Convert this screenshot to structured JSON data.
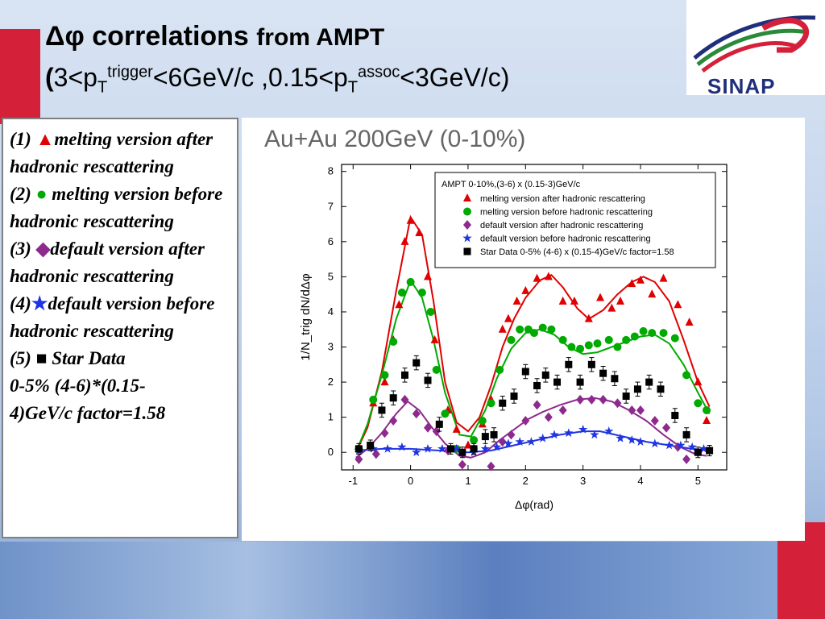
{
  "slide": {
    "title_symbol": "Δφ",
    "title_main": "correlations",
    "title_rest": "from AMPT",
    "subtitle_parts": [
      "(",
      "3<p",
      "T",
      "trigger",
      "<6GeV/c ,0.15<p",
      "T",
      "assoc",
      "<3GeV/c)"
    ],
    "logo_text": "SINAP",
    "colors": {
      "red_accent": "#d5203a",
      "logo_blue": "#1f2f7a",
      "logo_green": "#2a8a3a",
      "logo_red": "#d5203a"
    }
  },
  "legend_panel": {
    "items": [
      {
        "num": "(1)",
        "marker": "triangle",
        "color": "#e00000",
        "text": "melting version after hadronic rescattering"
      },
      {
        "num": "(2)",
        "marker": "circle",
        "color": "#00aa00",
        "text": "melting version before hadronic rescattering"
      },
      {
        "num": "(3)",
        "marker": "diamond",
        "color": "#8e2a8e",
        "text": "default version after hadronic rescattering"
      },
      {
        "num": "(4)",
        "marker": "star",
        "color": "#2035e0",
        "text": "default version before hadronic rescattering"
      },
      {
        "num": "(5)",
        "marker": "square",
        "color": "#000000",
        "text": "Star Data"
      }
    ],
    "extra_lines": [
      "0-5% (4-6)*(0.15-",
      "4)GeV/c factor=1.58"
    ]
  },
  "chart_data": {
    "type": "scatter",
    "title": "Au+Au 200GeV (0-10%)",
    "xlabel": "Δφ(rad)",
    "ylabel": "1/N_trig dN/dΔφ",
    "xlim": [
      -1.2,
      5.5
    ],
    "ylim": [
      -0.5,
      8.2
    ],
    "x_ticks": [
      -1,
      0,
      1,
      2,
      3,
      4,
      5
    ],
    "y_ticks": [
      0,
      1,
      2,
      3,
      4,
      5,
      6,
      7,
      8
    ],
    "legend_title": "AMPT 0-10%,(3-6) x (0.15-3)GeV/c",
    "legend_position": "top-right",
    "series": [
      {
        "name": "melting version after hadronic rescattering",
        "marker": "triangle",
        "color": "#e00000",
        "points": [
          [
            -0.9,
            0.1
          ],
          [
            -0.65,
            1.4
          ],
          [
            -0.45,
            2.0
          ],
          [
            -0.3,
            3.2
          ],
          [
            -0.2,
            4.2
          ],
          [
            -0.1,
            6.0
          ],
          [
            0.0,
            6.6
          ],
          [
            0.15,
            6.25
          ],
          [
            0.3,
            5.0
          ],
          [
            0.42,
            3.2
          ],
          [
            0.65,
            1.2
          ],
          [
            0.8,
            0.65
          ],
          [
            1.0,
            0.2
          ],
          [
            1.25,
            0.8
          ],
          [
            1.4,
            1.5
          ],
          [
            1.6,
            3.5
          ],
          [
            1.7,
            3.8
          ],
          [
            1.85,
            4.3
          ],
          [
            2.0,
            4.6
          ],
          [
            2.2,
            4.95
          ],
          [
            2.4,
            5.0
          ],
          [
            2.65,
            4.3
          ],
          [
            2.85,
            4.3
          ],
          [
            3.1,
            3.8
          ],
          [
            3.3,
            4.4
          ],
          [
            3.5,
            4.1
          ],
          [
            3.65,
            4.3
          ],
          [
            3.85,
            4.8
          ],
          [
            4.0,
            4.9
          ],
          [
            4.2,
            4.5
          ],
          [
            4.4,
            4.95
          ],
          [
            4.65,
            4.2
          ],
          [
            4.85,
            3.7
          ],
          [
            5.0,
            2.0
          ],
          [
            5.15,
            0.9
          ]
        ]
      },
      {
        "name": "melting version before hadronic rescattering",
        "marker": "circle",
        "color": "#00aa00",
        "points": [
          [
            -0.9,
            0.1
          ],
          [
            -0.65,
            1.5
          ],
          [
            -0.45,
            2.2
          ],
          [
            -0.3,
            3.15
          ],
          [
            -0.15,
            4.55
          ],
          [
            0.0,
            4.85
          ],
          [
            0.2,
            4.55
          ],
          [
            0.35,
            4.0
          ],
          [
            0.45,
            2.35
          ],
          [
            0.6,
            1.1
          ],
          [
            0.8,
            0.1
          ],
          [
            1.1,
            0.35
          ],
          [
            1.25,
            0.9
          ],
          [
            1.4,
            1.4
          ],
          [
            1.55,
            2.35
          ],
          [
            1.75,
            3.2
          ],
          [
            1.9,
            3.5
          ],
          [
            2.05,
            3.5
          ],
          [
            2.15,
            3.4
          ],
          [
            2.3,
            3.55
          ],
          [
            2.45,
            3.5
          ],
          [
            2.65,
            3.2
          ],
          [
            2.8,
            3.0
          ],
          [
            2.95,
            2.95
          ],
          [
            3.1,
            3.05
          ],
          [
            3.25,
            3.1
          ],
          [
            3.45,
            3.2
          ],
          [
            3.6,
            3.0
          ],
          [
            3.75,
            3.2
          ],
          [
            3.9,
            3.3
          ],
          [
            4.05,
            3.45
          ],
          [
            4.2,
            3.4
          ],
          [
            4.4,
            3.4
          ],
          [
            4.6,
            3.25
          ],
          [
            4.8,
            2.2
          ],
          [
            5.0,
            1.4
          ],
          [
            5.15,
            1.2
          ]
        ]
      },
      {
        "name": "default version after hadronic rescattering",
        "marker": "diamond",
        "color": "#8e2a8e",
        "points": [
          [
            -0.9,
            -0.2
          ],
          [
            -0.6,
            -0.05
          ],
          [
            -0.45,
            0.55
          ],
          [
            -0.3,
            0.9
          ],
          [
            -0.1,
            1.5
          ],
          [
            0.1,
            1.1
          ],
          [
            0.3,
            0.7
          ],
          [
            0.45,
            0.6
          ],
          [
            0.65,
            0.05
          ],
          [
            0.9,
            -0.35
          ],
          [
            1.1,
            0.1
          ],
          [
            1.4,
            -0.4
          ],
          [
            1.6,
            0.3
          ],
          [
            1.75,
            0.5
          ],
          [
            2.0,
            0.9
          ],
          [
            2.2,
            1.35
          ],
          [
            2.4,
            1.0
          ],
          [
            2.65,
            1.2
          ],
          [
            2.95,
            1.5
          ],
          [
            3.15,
            1.5
          ],
          [
            3.35,
            1.5
          ],
          [
            3.6,
            1.4
          ],
          [
            3.85,
            1.2
          ],
          [
            4.0,
            1.2
          ],
          [
            4.25,
            0.9
          ],
          [
            4.45,
            0.7
          ],
          [
            4.65,
            0.15
          ],
          [
            4.8,
            -0.2
          ],
          [
            5.0,
            0.0
          ]
        ]
      },
      {
        "name": "default version before hadronic rescattering",
        "marker": "star",
        "color": "#2035e0",
        "points": [
          [
            -0.9,
            0.05
          ],
          [
            -0.65,
            0.1
          ],
          [
            -0.4,
            0.1
          ],
          [
            -0.15,
            0.15
          ],
          [
            0.1,
            0.0
          ],
          [
            0.3,
            0.1
          ],
          [
            0.55,
            0.1
          ],
          [
            0.8,
            0.1
          ],
          [
            1.1,
            0.0
          ],
          [
            1.3,
            0.1
          ],
          [
            1.5,
            0.15
          ],
          [
            1.7,
            0.25
          ],
          [
            1.9,
            0.3
          ],
          [
            2.1,
            0.3
          ],
          [
            2.3,
            0.4
          ],
          [
            2.5,
            0.5
          ],
          [
            2.75,
            0.55
          ],
          [
            3.0,
            0.65
          ],
          [
            3.2,
            0.5
          ],
          [
            3.45,
            0.6
          ],
          [
            3.65,
            0.4
          ],
          [
            3.85,
            0.35
          ],
          [
            4.0,
            0.3
          ],
          [
            4.25,
            0.25
          ],
          [
            4.5,
            0.2
          ],
          [
            4.7,
            0.2
          ],
          [
            4.9,
            0.15
          ],
          [
            5.1,
            0.1
          ]
        ]
      },
      {
        "name": "Star Data 0-5% (4-6) x (0.15-4)GeV/c factor=1.58",
        "marker": "square",
        "color": "#000000",
        "points": [
          [
            -0.9,
            0.1
          ],
          [
            -0.7,
            0.2
          ],
          [
            -0.5,
            1.2
          ],
          [
            -0.3,
            1.55
          ],
          [
            -0.1,
            2.2
          ],
          [
            0.1,
            2.55
          ],
          [
            0.3,
            2.05
          ],
          [
            0.5,
            0.8
          ],
          [
            0.7,
            0.1
          ],
          [
            0.9,
            0.0
          ],
          [
            1.1,
            0.1
          ],
          [
            1.3,
            0.45
          ],
          [
            1.45,
            0.5
          ],
          [
            1.6,
            1.4
          ],
          [
            1.8,
            1.6
          ],
          [
            2.0,
            2.3
          ],
          [
            2.2,
            1.9
          ],
          [
            2.35,
            2.2
          ],
          [
            2.55,
            2.0
          ],
          [
            2.75,
            2.5
          ],
          [
            2.95,
            2.0
          ],
          [
            3.15,
            2.5
          ],
          [
            3.35,
            2.25
          ],
          [
            3.55,
            2.1
          ],
          [
            3.75,
            1.6
          ],
          [
            3.95,
            1.8
          ],
          [
            4.15,
            2.0
          ],
          [
            4.35,
            1.8
          ],
          [
            4.6,
            1.05
          ],
          [
            4.8,
            0.5
          ],
          [
            5.0,
            0.0
          ],
          [
            5.2,
            0.05
          ]
        ],
        "errors": [
          0.15,
          0.15,
          0.2,
          0.2,
          0.2,
          0.2,
          0.2,
          0.2,
          0.15,
          0.15,
          0.15,
          0.2,
          0.2,
          0.2,
          0.2,
          0.2,
          0.2,
          0.2,
          0.2,
          0.2,
          0.2,
          0.2,
          0.2,
          0.2,
          0.2,
          0.2,
          0.2,
          0.2,
          0.2,
          0.2,
          0.15,
          0.15
        ]
      }
    ],
    "fit_curves": [
      {
        "color": "#e00000",
        "points": [
          [
            -0.95,
            0.0
          ],
          [
            -0.75,
            0.7
          ],
          [
            -0.5,
            2.3
          ],
          [
            -0.25,
            4.6
          ],
          [
            0.0,
            6.7
          ],
          [
            0.2,
            6.2
          ],
          [
            0.4,
            4.3
          ],
          [
            0.6,
            2.0
          ],
          [
            0.8,
            0.85
          ],
          [
            1.0,
            0.6
          ],
          [
            1.2,
            1.0
          ],
          [
            1.4,
            1.9
          ],
          [
            1.6,
            3.0
          ],
          [
            1.8,
            3.8
          ],
          [
            2.0,
            4.4
          ],
          [
            2.25,
            4.9
          ],
          [
            2.45,
            5.05
          ],
          [
            2.65,
            4.7
          ],
          [
            2.9,
            4.1
          ],
          [
            3.1,
            3.8
          ],
          [
            3.35,
            4.05
          ],
          [
            3.6,
            4.5
          ],
          [
            3.85,
            4.85
          ],
          [
            4.05,
            5.0
          ],
          [
            4.25,
            4.85
          ],
          [
            4.5,
            4.3
          ],
          [
            4.75,
            3.2
          ],
          [
            5.0,
            2.0
          ],
          [
            5.2,
            1.3
          ]
        ]
      },
      {
        "color": "#00aa00",
        "points": [
          [
            -0.95,
            0.0
          ],
          [
            -0.75,
            0.8
          ],
          [
            -0.5,
            2.2
          ],
          [
            -0.25,
            3.8
          ],
          [
            0.0,
            4.9
          ],
          [
            0.2,
            4.4
          ],
          [
            0.4,
            3.2
          ],
          [
            0.6,
            1.7
          ],
          [
            0.85,
            0.5
          ],
          [
            1.05,
            0.45
          ],
          [
            1.3,
            1.2
          ],
          [
            1.5,
            2.1
          ],
          [
            1.75,
            2.95
          ],
          [
            2.0,
            3.4
          ],
          [
            2.25,
            3.5
          ],
          [
            2.5,
            3.35
          ],
          [
            2.75,
            3.0
          ],
          [
            3.0,
            2.8
          ],
          [
            3.25,
            2.85
          ],
          [
            3.5,
            3.0
          ],
          [
            3.75,
            3.15
          ],
          [
            4.0,
            3.3
          ],
          [
            4.25,
            3.35
          ],
          [
            4.5,
            3.1
          ],
          [
            4.75,
            2.5
          ],
          [
            5.0,
            1.7
          ],
          [
            5.2,
            1.1
          ]
        ]
      },
      {
        "color": "#8e2a8e",
        "points": [
          [
            -0.95,
            -0.15
          ],
          [
            -0.75,
            0.1
          ],
          [
            -0.5,
            0.55
          ],
          [
            -0.25,
            1.1
          ],
          [
            -0.05,
            1.45
          ],
          [
            0.15,
            1.2
          ],
          [
            0.35,
            0.75
          ],
          [
            0.6,
            0.25
          ],
          [
            0.85,
            -0.1
          ],
          [
            1.05,
            -0.15
          ],
          [
            1.3,
            0.0
          ],
          [
            1.55,
            0.35
          ],
          [
            1.8,
            0.65
          ],
          [
            2.05,
            0.95
          ],
          [
            2.3,
            1.15
          ],
          [
            2.6,
            1.35
          ],
          [
            2.9,
            1.5
          ],
          [
            3.2,
            1.55
          ],
          [
            3.5,
            1.45
          ],
          [
            3.8,
            1.2
          ],
          [
            4.1,
            0.9
          ],
          [
            4.4,
            0.5
          ],
          [
            4.7,
            0.15
          ],
          [
            4.95,
            -0.05
          ],
          [
            5.15,
            -0.1
          ]
        ]
      },
      {
        "color": "#2035e0",
        "points": [
          [
            -0.95,
            0.05
          ],
          [
            -0.5,
            0.1
          ],
          [
            0.0,
            0.1
          ],
          [
            0.5,
            0.05
          ],
          [
            1.0,
            0.0
          ],
          [
            1.4,
            0.05
          ],
          [
            1.8,
            0.2
          ],
          [
            2.2,
            0.35
          ],
          [
            2.6,
            0.5
          ],
          [
            3.0,
            0.6
          ],
          [
            3.3,
            0.6
          ],
          [
            3.7,
            0.45
          ],
          [
            4.1,
            0.3
          ],
          [
            4.5,
            0.2
          ],
          [
            4.9,
            0.1
          ],
          [
            5.25,
            0.05
          ]
        ]
      }
    ]
  }
}
